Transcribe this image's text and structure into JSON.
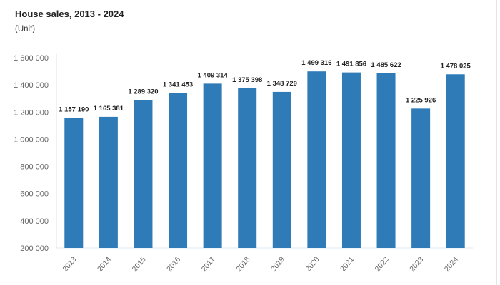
{
  "chart_data": {
    "type": "bar",
    "title": "House sales, 2013 - 2024",
    "subtitle": "(Unit)",
    "categories": [
      "2013",
      "2014",
      "2015",
      "2016",
      "2017",
      "2018",
      "2019",
      "2020",
      "2021",
      "2022",
      "2023",
      "2024"
    ],
    "values": [
      1157190,
      1165381,
      1289320,
      1341453,
      1409314,
      1375398,
      1348729,
      1499316,
      1491856,
      1485622,
      1225926,
      1478025
    ],
    "data_labels": [
      "1 157 190",
      "1 165 381",
      "1 289 320",
      "1 341 453",
      "1 409 314",
      "1 375 398",
      "1 348 729",
      "1 499 316",
      "1 491 856",
      "1 485 622",
      "1 225 926",
      "1 478 025"
    ],
    "ylim": [
      200000,
      1600000
    ],
    "yticks": [
      200000,
      400000,
      600000,
      800000,
      1000000,
      1200000,
      1400000,
      1600000
    ],
    "ytick_labels": [
      "200 000",
      "400 000",
      "600 000",
      "800 000",
      "1 000 000",
      "1 200 000",
      "1 400 000",
      "1 600 000"
    ],
    "grid": false,
    "bar_color": "#2e7bb8"
  }
}
